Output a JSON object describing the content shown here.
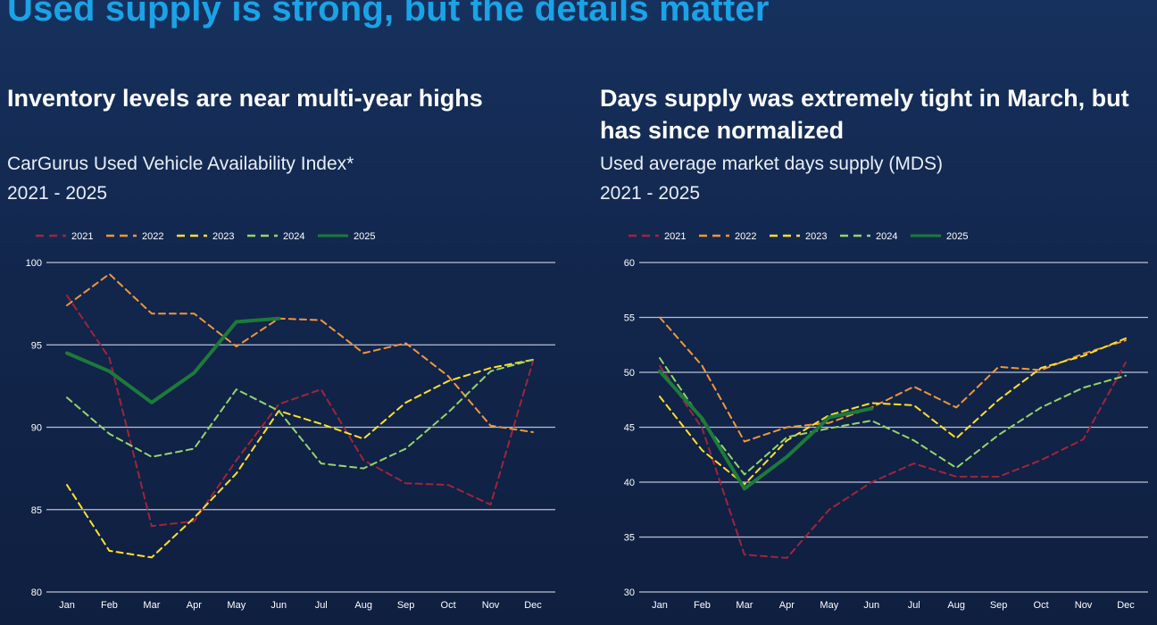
{
  "page": {
    "title": "Used supply is strong, but the details matter"
  },
  "panels": [
    {
      "headline": "Inventory levels are near multi-year highs",
      "subtitle": "CarGurus Used Vehicle Availability Index*",
      "range": "2021 - 2025"
    },
    {
      "headline": "Days supply was extremely tight in March, but has since normalized",
      "subtitle": "Used average market days supply (MDS)",
      "range": "2021 - 2025"
    }
  ],
  "colors": {
    "2021": "#a0243c",
    "2022": "#f0963a",
    "2023": "#ffe02a",
    "2024": "#96d46a",
    "2025": "#1d7a3a",
    "gridline": "#b9c2d3",
    "title": "#1aa3e6"
  },
  "chart_data": [
    {
      "type": "line",
      "title": "CarGurus Used Vehicle Availability Index*",
      "categories": [
        "Jan",
        "Feb",
        "Mar",
        "Apr",
        "May",
        "Jun",
        "Jul",
        "Aug",
        "Sep",
        "Oct",
        "Nov",
        "Dec"
      ],
      "ylim": [
        80,
        100
      ],
      "yticks": [
        80,
        85,
        90,
        95,
        100
      ],
      "grid": true,
      "legend": "top-left",
      "series": [
        {
          "name": "2021",
          "style": "dashed",
          "values": [
            98.0,
            94.2,
            84.0,
            84.3,
            88.0,
            91.4,
            92.3,
            88.0,
            86.6,
            86.5,
            85.3,
            94.0
          ]
        },
        {
          "name": "2022",
          "style": "dashed",
          "values": [
            97.4,
            99.3,
            96.9,
            96.9,
            94.9,
            96.6,
            96.5,
            94.5,
            95.1,
            93.1,
            90.1,
            89.7
          ]
        },
        {
          "name": "2023",
          "style": "dashed",
          "values": [
            86.5,
            82.5,
            82.1,
            84.5,
            87.2,
            91.0,
            90.2,
            89.3,
            91.5,
            92.8,
            93.6,
            94.1
          ]
        },
        {
          "name": "2024",
          "style": "dashed",
          "values": [
            91.8,
            89.6,
            88.2,
            88.7,
            92.3,
            91.0,
            87.8,
            87.5,
            88.7,
            90.9,
            93.4,
            94.1
          ]
        },
        {
          "name": "2025",
          "style": "solid",
          "values": [
            94.5,
            93.4,
            91.5,
            93.3,
            96.4,
            96.6,
            null,
            null,
            null,
            null,
            null,
            null
          ]
        }
      ]
    },
    {
      "type": "line",
      "title": "Used average market days supply (MDS)",
      "categories": [
        "Jan",
        "Feb",
        "Mar",
        "Apr",
        "May",
        "Jun",
        "Jul",
        "Aug",
        "Sep",
        "Oct",
        "Nov",
        "Dec"
      ],
      "ylim": [
        30,
        60
      ],
      "yticks": [
        30,
        35,
        40,
        45,
        50,
        55,
        60
      ],
      "grid": true,
      "legend": "top-left",
      "series": [
        {
          "name": "2021",
          "style": "dashed",
          "values": [
            50.6,
            44.9,
            33.4,
            33.1,
            37.5,
            40.0,
            41.7,
            40.5,
            40.5,
            42.0,
            43.9,
            50.9
          ]
        },
        {
          "name": "2022",
          "style": "dashed",
          "values": [
            55.0,
            50.6,
            43.7,
            45.0,
            45.4,
            46.8,
            48.7,
            46.8,
            50.5,
            50.2,
            51.7,
            52.9
          ]
        },
        {
          "name": "2023",
          "style": "dashed",
          "values": [
            47.8,
            42.9,
            39.8,
            43.8,
            46.1,
            47.2,
            47.0,
            44.0,
            47.5,
            50.4,
            51.5,
            53.1
          ]
        },
        {
          "name": "2024",
          "style": "dashed",
          "values": [
            51.3,
            45.6,
            40.7,
            44.1,
            44.9,
            45.6,
            43.8,
            41.3,
            44.3,
            46.8,
            48.6,
            49.7
          ]
        },
        {
          "name": "2025",
          "style": "solid",
          "values": [
            50.1,
            45.8,
            39.4,
            42.3,
            45.9,
            46.7,
            null,
            null,
            null,
            null,
            null,
            null
          ]
        }
      ]
    }
  ]
}
